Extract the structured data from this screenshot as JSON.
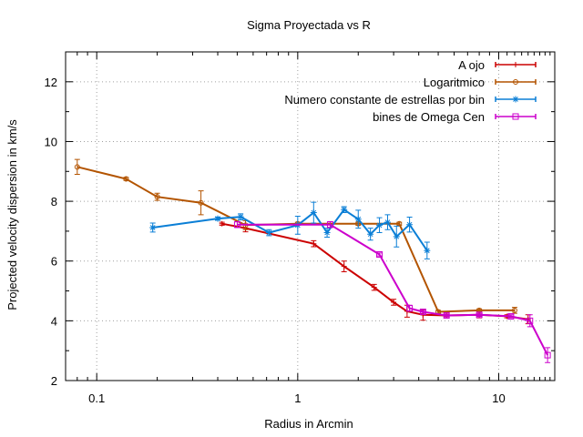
{
  "chart_data": {
    "type": "line",
    "title": "Sigma Proyectada vs R",
    "xlabel": "Radius in Arcmin",
    "ylabel": "Projected velocity dispersion in km/s",
    "xscale": "log",
    "xlim": [
      0.07,
      19
    ],
    "ylim": [
      2,
      13
    ],
    "xticks": [
      {
        "value": 0.1,
        "label": "0.1"
      },
      {
        "value": 1,
        "label": "1"
      },
      {
        "value": 10,
        "label": "10"
      }
    ],
    "yticks": [
      {
        "value": 2,
        "label": "2"
      },
      {
        "value": 4,
        "label": "4"
      },
      {
        "value": 6,
        "label": "6"
      },
      {
        "value": 8,
        "label": "8"
      },
      {
        "value": 10,
        "label": "10"
      },
      {
        "value": 12,
        "label": "12"
      }
    ],
    "grid": true,
    "legend_position": "top-right",
    "series": [
      {
        "name": "A ojo",
        "color": "#cc0000",
        "marker": "plus",
        "points": [
          {
            "x": 0.42,
            "y": 7.25,
            "err": 0.05
          },
          {
            "x": 0.55,
            "y": 7.1,
            "err": 0.12
          },
          {
            "x": 1.2,
            "y": 6.58,
            "err": 0.1
          },
          {
            "x": 1.7,
            "y": 5.82,
            "err": 0.18
          },
          {
            "x": 2.4,
            "y": 5.12,
            "err": 0.1
          },
          {
            "x": 3.0,
            "y": 4.62,
            "err": 0.1
          },
          {
            "x": 3.5,
            "y": 4.32,
            "err": 0.2
          },
          {
            "x": 4.2,
            "y": 4.2,
            "err": 0.18
          },
          {
            "x": 5.5,
            "y": 4.18,
            "err": 0.05
          },
          {
            "x": 8.0,
            "y": 4.2,
            "err": 0.1
          },
          {
            "x": 11.0,
            "y": 4.15,
            "err": 0.05
          },
          {
            "x": 14.0,
            "y": 4.05,
            "err": 0.15
          }
        ]
      },
      {
        "name": "Logaritmico",
        "color": "#b35400",
        "marker": "circle",
        "points": [
          {
            "x": 0.08,
            "y": 9.15,
            "err": 0.25
          },
          {
            "x": 0.14,
            "y": 8.75,
            "err": 0.05
          },
          {
            "x": 0.2,
            "y": 8.15,
            "err": 0.12
          },
          {
            "x": 0.33,
            "y": 7.95,
            "err": 0.4
          },
          {
            "x": 0.55,
            "y": 7.2,
            "err": 0.15
          },
          {
            "x": 1.0,
            "y": 7.25,
            "err": 0.05
          },
          {
            "x": 2.0,
            "y": 7.25,
            "err": 0.05
          },
          {
            "x": 3.2,
            "y": 7.25,
            "err": 0.05
          },
          {
            "x": 5.0,
            "y": 4.3,
            "err": 0.05
          },
          {
            "x": 8.0,
            "y": 4.35,
            "err": 0.05
          },
          {
            "x": 12.0,
            "y": 4.35,
            "err": 0.1
          }
        ]
      },
      {
        "name": "Numero constante de estrellas por bin",
        "color": "#0b7fd6",
        "marker": "star",
        "points": [
          {
            "x": 0.19,
            "y": 7.12,
            "err": 0.15
          },
          {
            "x": 0.4,
            "y": 7.42,
            "err": 0.05
          },
          {
            "x": 0.52,
            "y": 7.48,
            "err": 0.1
          },
          {
            "x": 0.72,
            "y": 6.95,
            "err": 0.1
          },
          {
            "x": 1.0,
            "y": 7.2,
            "err": 0.3
          },
          {
            "x": 1.2,
            "y": 7.62,
            "err": 0.35
          },
          {
            "x": 1.4,
            "y": 6.95,
            "err": 0.15
          },
          {
            "x": 1.7,
            "y": 7.72,
            "err": 0.1
          },
          {
            "x": 2.0,
            "y": 7.4,
            "err": 0.3
          },
          {
            "x": 2.3,
            "y": 6.9,
            "err": 0.2
          },
          {
            "x": 2.55,
            "y": 7.2,
            "err": 0.25
          },
          {
            "x": 2.8,
            "y": 7.3,
            "err": 0.25
          },
          {
            "x": 3.1,
            "y": 6.82,
            "err": 0.35
          },
          {
            "x": 3.6,
            "y": 7.22,
            "err": 0.25
          },
          {
            "x": 4.4,
            "y": 6.35,
            "err": 0.28
          }
        ]
      },
      {
        "name": "bines de Omega Cen",
        "color": "#cc00cc",
        "marker": "square",
        "points": [
          {
            "x": 0.5,
            "y": 7.22,
            "err": 0.1
          },
          {
            "x": 1.45,
            "y": 7.22,
            "err": 0.1
          },
          {
            "x": 2.55,
            "y": 6.22,
            "err": 0.05
          },
          {
            "x": 3.6,
            "y": 4.42,
            "err": 0.1
          },
          {
            "x": 4.2,
            "y": 4.3,
            "err": 0.05
          },
          {
            "x": 5.5,
            "y": 4.18,
            "err": 0.05
          },
          {
            "x": 8.0,
            "y": 4.2,
            "err": 0.05
          },
          {
            "x": 11.5,
            "y": 4.15,
            "err": 0.05
          },
          {
            "x": 14.3,
            "y": 4.0,
            "err": 0.2
          },
          {
            "x": 17.5,
            "y": 2.85,
            "err": 0.25
          }
        ]
      }
    ]
  }
}
